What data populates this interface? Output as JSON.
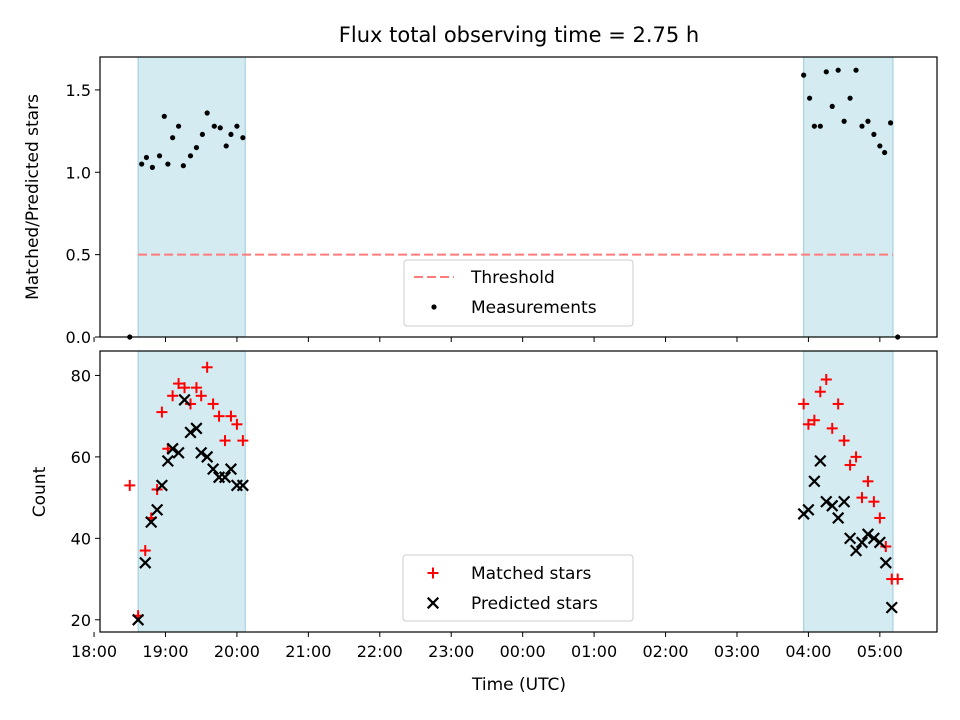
{
  "chart_data": {
    "title": "Flux total observing time = 2.75 h",
    "xlabel": "Time (UTC)",
    "x_ticks": [
      "18:00",
      "19:00",
      "20:00",
      "21:00",
      "22:00",
      "23:00",
      "00:00",
      "01:00",
      "02:00",
      "03:00",
      "04:00",
      "05:00"
    ],
    "x_range": [
      "18:05",
      "05:48"
    ],
    "observing_windows": [
      {
        "start": "18:37",
        "end": "20:07"
      },
      {
        "start": "03:56",
        "end": "05:11"
      }
    ],
    "shade_color": "#add8e6",
    "panels": [
      {
        "type": "scatter",
        "ylabel": "Matched/Predicted stars",
        "ylim": [
          0,
          1.7
        ],
        "y_ticks": [
          "0.0",
          "0.5",
          "1.0",
          "1.5"
        ],
        "series": [
          {
            "name": "Measurements",
            "marker": "dot",
            "color": "#000000",
            "points": [
              [
                "18:30",
                0.0
              ],
              [
                "18:40",
                1.05
              ],
              [
                "18:44",
                1.09
              ],
              [
                "18:49",
                1.03
              ],
              [
                "18:55",
                1.1
              ],
              [
                "18:59",
                1.34
              ],
              [
                "19:02",
                1.05
              ],
              [
                "19:06",
                1.21
              ],
              [
                "19:11",
                1.28
              ],
              [
                "19:15",
                1.04
              ],
              [
                "19:21",
                1.1
              ],
              [
                "19:26",
                1.15
              ],
              [
                "19:31",
                1.23
              ],
              [
                "19:35",
                1.36
              ],
              [
                "19:41",
                1.28
              ],
              [
                "19:46",
                1.27
              ],
              [
                "19:51",
                1.16
              ],
              [
                "19:55",
                1.23
              ],
              [
                "20:00",
                1.28
              ],
              [
                "20:05",
                1.21
              ],
              [
                "03:56",
                1.59
              ],
              [
                "04:01",
                1.45
              ],
              [
                "04:05",
                1.28
              ],
              [
                "04:10",
                1.28
              ],
              [
                "04:15",
                1.61
              ],
              [
                "04:20",
                1.4
              ],
              [
                "04:25",
                1.62
              ],
              [
                "04:30",
                1.31
              ],
              [
                "04:35",
                1.45
              ],
              [
                "04:40",
                1.62
              ],
              [
                "04:45",
                1.28
              ],
              [
                "04:50",
                1.31
              ],
              [
                "04:55",
                1.23
              ],
              [
                "05:00",
                1.16
              ],
              [
                "05:04",
                1.12
              ],
              [
                "05:09",
                1.3
              ],
              [
                "05:15",
                0.0
              ]
            ]
          },
          {
            "name": "Threshold",
            "type": "line",
            "style": "dashed",
            "color": "#ff7b7b",
            "points": [
              [
                "18:37",
                0.5
              ],
              [
                "05:11",
                0.5
              ]
            ]
          }
        ],
        "legend": [
          "Threshold",
          "Measurements"
        ],
        "legend_position": "lower center"
      },
      {
        "type": "scatter",
        "ylabel": "Count",
        "ylim": [
          17,
          86
        ],
        "y_ticks": [
          "20",
          "40",
          "60",
          "80"
        ],
        "series": [
          {
            "name": "Matched stars",
            "marker": "plus",
            "color": "#ff0000",
            "points": [
              [
                "18:30",
                53
              ],
              [
                "18:37",
                21
              ],
              [
                "18:43",
                37
              ],
              [
                "18:48",
                45
              ],
              [
                "18:53",
                52
              ],
              [
                "18:57",
                71
              ],
              [
                "19:02",
                62
              ],
              [
                "19:06",
                75
              ],
              [
                "19:11",
                78
              ],
              [
                "19:16",
                77
              ],
              [
                "19:21",
                73
              ],
              [
                "19:26",
                77
              ],
              [
                "19:30",
                75
              ],
              [
                "19:35",
                82
              ],
              [
                "19:40",
                73
              ],
              [
                "19:45",
                70
              ],
              [
                "19:50",
                64
              ],
              [
                "19:55",
                70
              ],
              [
                "20:00",
                68
              ],
              [
                "20:05",
                64
              ],
              [
                "03:56",
                73
              ],
              [
                "04:00",
                68
              ],
              [
                "04:05",
                69
              ],
              [
                "04:10",
                76
              ],
              [
                "04:15",
                79
              ],
              [
                "04:20",
                67
              ],
              [
                "04:25",
                73
              ],
              [
                "04:30",
                64
              ],
              [
                "04:35",
                58
              ],
              [
                "04:40",
                60
              ],
              [
                "04:45",
                50
              ],
              [
                "04:50",
                54
              ],
              [
                "04:55",
                49
              ],
              [
                "05:00",
                45
              ],
              [
                "05:05",
                38
              ],
              [
                "05:10",
                30
              ],
              [
                "05:15",
                30
              ]
            ]
          },
          {
            "name": "Predicted stars",
            "marker": "x",
            "color": "#000000",
            "points": [
              [
                "18:37",
                20
              ],
              [
                "18:43",
                34
              ],
              [
                "18:48",
                44
              ],
              [
                "18:53",
                47
              ],
              [
                "18:57",
                53
              ],
              [
                "19:02",
                59
              ],
              [
                "19:06",
                62
              ],
              [
                "19:11",
                61
              ],
              [
                "19:16",
                74
              ],
              [
                "19:21",
                66
              ],
              [
                "19:26",
                67
              ],
              [
                "19:30",
                61
              ],
              [
                "19:35",
                60
              ],
              [
                "19:40",
                57
              ],
              [
                "19:45",
                55
              ],
              [
                "19:50",
                55
              ],
              [
                "19:55",
                57
              ],
              [
                "20:00",
                53
              ],
              [
                "20:05",
                53
              ],
              [
                "03:56",
                46
              ],
              [
                "04:00",
                47
              ],
              [
                "04:05",
                54
              ],
              [
                "04:10",
                59
              ],
              [
                "04:15",
                49
              ],
              [
                "04:20",
                48
              ],
              [
                "04:25",
                45
              ],
              [
                "04:30",
                49
              ],
              [
                "04:35",
                40
              ],
              [
                "04:40",
                37
              ],
              [
                "04:45",
                39
              ],
              [
                "04:50",
                41
              ],
              [
                "04:55",
                40
              ],
              [
                "05:00",
                39
              ],
              [
                "05:05",
                34
              ],
              [
                "05:10",
                23
              ]
            ]
          }
        ],
        "legend": [
          "Matched stars",
          "Predicted stars"
        ],
        "legend_position": "lower center"
      }
    ]
  }
}
